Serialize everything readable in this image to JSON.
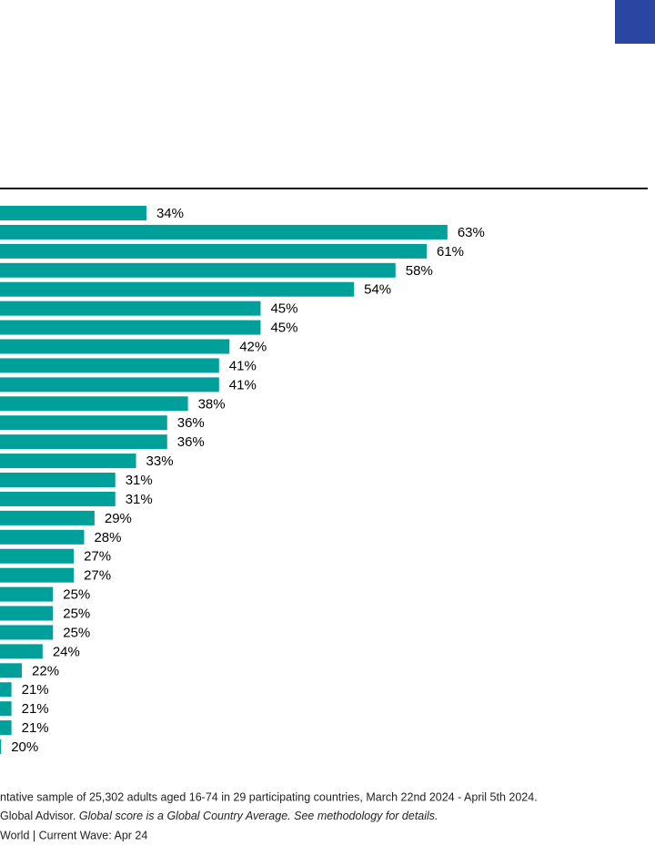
{
  "chart_data": {
    "type": "bar",
    "orientation": "horizontal",
    "color": "#00a09a",
    "values": [
      34,
      63,
      61,
      58,
      54,
      45,
      45,
      42,
      41,
      41,
      38,
      36,
      36,
      33,
      31,
      31,
      29,
      28,
      27,
      27,
      25,
      25,
      25,
      24,
      22,
      21,
      21,
      21,
      20
    ],
    "value_labels": [
      "34%",
      "63%",
      "61%",
      "58%",
      "54%",
      "45%",
      "45%",
      "42%",
      "41%",
      "41%",
      "38%",
      "36%",
      "36%",
      "33%",
      "31%",
      "31%",
      "29%",
      "28%",
      "27%",
      "27%",
      "25%",
      "25%",
      "25%",
      "24%",
      "22%",
      "21%",
      "21%",
      "21%",
      "20%"
    ],
    "notes": [
      "ntative sample of 25,302 adults aged 16-74 in 29 participating countries, March 22nd 2024 - April 5th 2024.",
      "Global Advisor.",
      "Global score is a Global Country Average. See methodology for details.",
      "World | Current Wave: Apr 24"
    ]
  }
}
